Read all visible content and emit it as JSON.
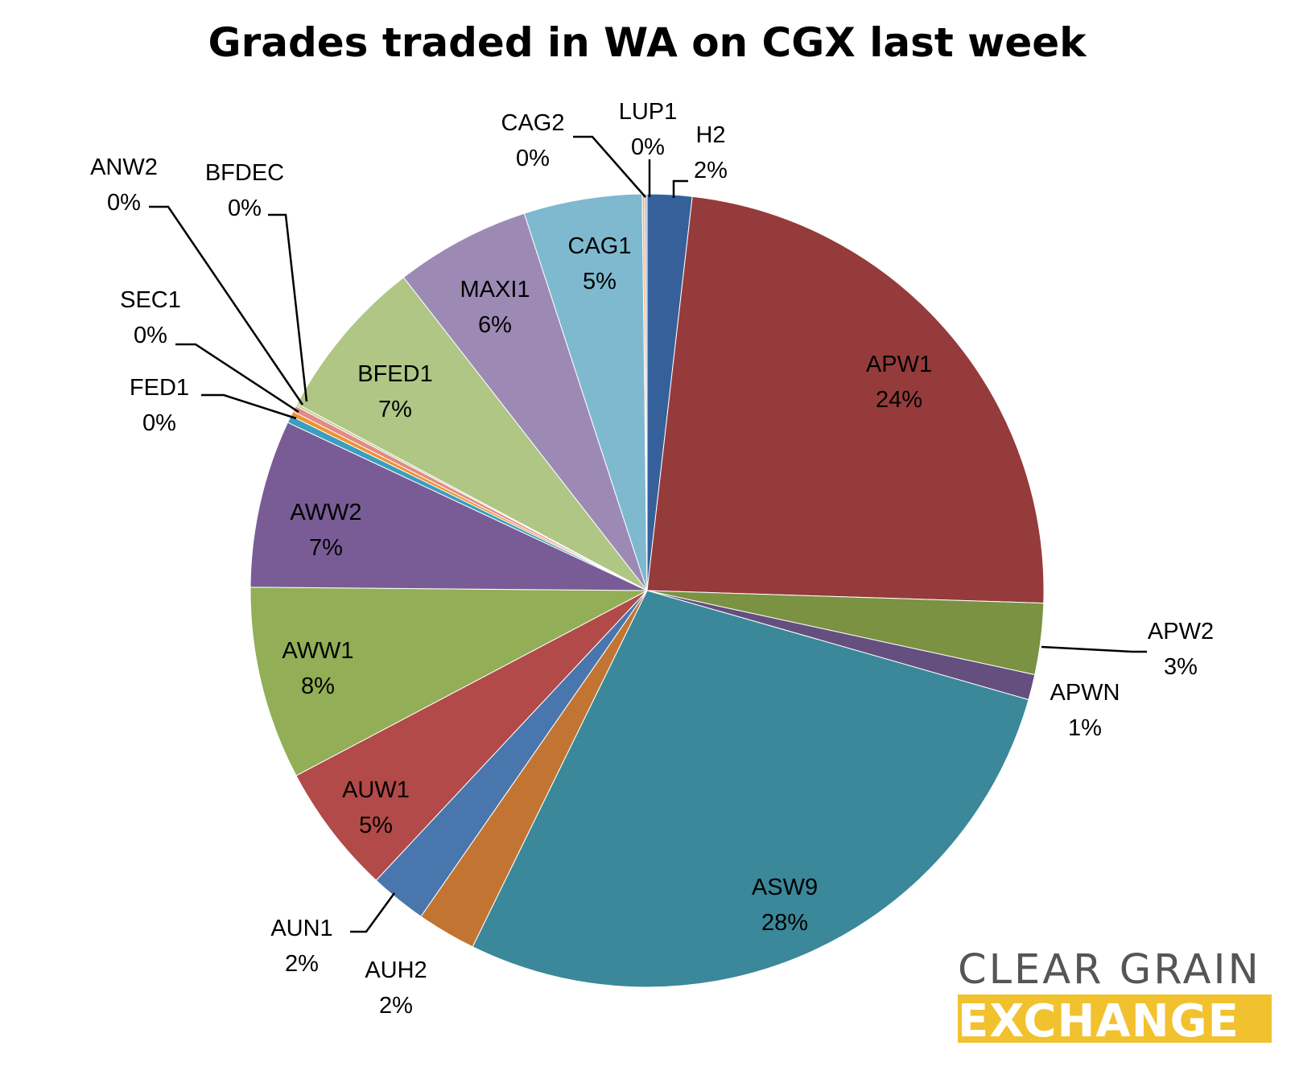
{
  "chart_data": {
    "type": "pie",
    "title": "Grades traded in WA on CGX last week",
    "start_angle_deg": 0,
    "direction": "clockwise",
    "slices": [
      {
        "label": "H2",
        "value": 1.85,
        "percent_label": "2%",
        "color": "#36609A"
      },
      {
        "label": "APW1",
        "value": 24.1,
        "percent_label": "24%",
        "color": "#953B3B"
      },
      {
        "label": "APW2",
        "value": 2.95,
        "percent_label": "3%",
        "color": "#7A9242"
      },
      {
        "label": "APWN",
        "value": 1.05,
        "percent_label": "1%",
        "color": "#654F7E"
      },
      {
        "label": "ASW9",
        "value": 28.3,
        "percent_label": "28%",
        "color": "#3A8899"
      },
      {
        "label": "AUH2",
        "value": 2.45,
        "percent_label": "2%",
        "color": "#C27533"
      },
      {
        "label": "AUN1",
        "value": 2.35,
        "percent_label": "2%",
        "color": "#4A76AE"
      },
      {
        "label": "AUW1",
        "value": 5.4,
        "percent_label": "5%",
        "color": "#B14A48"
      },
      {
        "label": "AWW1",
        "value": 8.0,
        "percent_label": "8%",
        "color": "#92AE56"
      },
      {
        "label": "AWW2",
        "value": 6.95,
        "percent_label": "7%",
        "color": "#795C95"
      },
      {
        "label": "FED1",
        "value": 0.3,
        "percent_label": "0%",
        "color": "#3A9EC0"
      },
      {
        "label": "SEC1",
        "value": 0.2,
        "percent_label": "0%",
        "color": "#F0922E"
      },
      {
        "label": "ANW2",
        "value": 0.25,
        "percent_label": "0%",
        "color": "#E08B86"
      },
      {
        "label": "BFDEC",
        "value": 0.1,
        "percent_label": "0%",
        "color": "#C0CE8E"
      },
      {
        "label": "BFED1",
        "value": 6.8,
        "percent_label": "7%",
        "color": "#AFC685"
      },
      {
        "label": "MAXI1",
        "value": 5.6,
        "percent_label": "6%",
        "color": "#9C8AB5"
      },
      {
        "label": "CAG1",
        "value": 4.9,
        "percent_label": "5%",
        "color": "#7EB9CF"
      },
      {
        "label": "CAG2",
        "value": 0.1,
        "percent_label": "0%",
        "color": "#F4B27E"
      },
      {
        "label": "LUP1",
        "value": 0.1,
        "percent_label": "0%",
        "color": "#A8BCDB"
      }
    ]
  },
  "logo": {
    "line1": "CLEAR GRAIN",
    "line2": "EXCHANGE",
    "line1_color": "#555555",
    "line2_color": "#F2C12E"
  }
}
